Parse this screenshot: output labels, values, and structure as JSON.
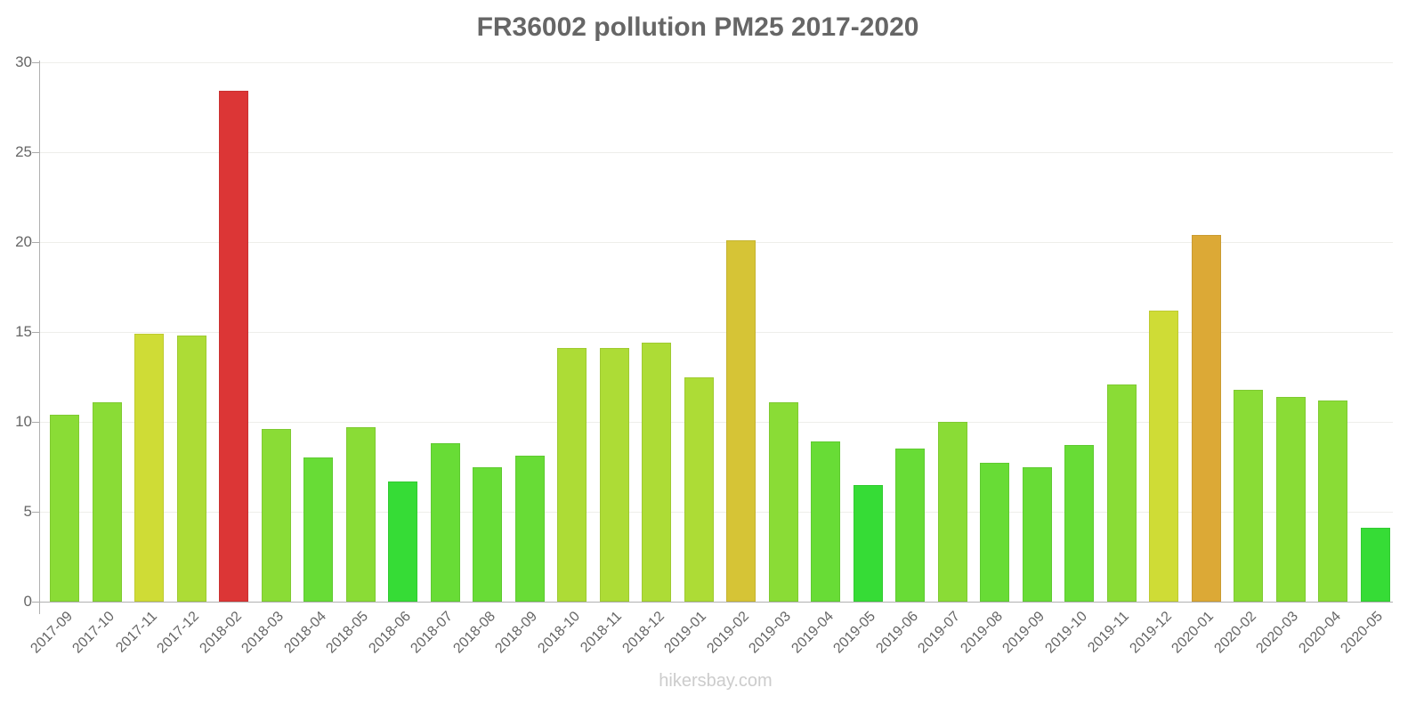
{
  "chart_data": {
    "type": "bar",
    "title": "FR36002 pollution PM25 2017-2020",
    "xlabel": "",
    "ylabel": "",
    "ylim": [
      0,
      30
    ],
    "yticks": [
      0,
      5,
      10,
      15,
      20,
      25,
      30
    ],
    "grid": true,
    "legend": null,
    "categories": [
      "2017-09",
      "2017-10",
      "2017-11",
      "2017-12",
      "2018-02",
      "2018-03",
      "2018-04",
      "2018-05",
      "2018-06",
      "2018-07",
      "2018-08",
      "2018-09",
      "2018-10",
      "2018-11",
      "2018-12",
      "2019-01",
      "2019-02",
      "2019-03",
      "2019-04",
      "2019-05",
      "2019-06",
      "2019-07",
      "2019-08",
      "2019-09",
      "2019-10",
      "2019-11",
      "2019-12",
      "2020-01",
      "2020-02",
      "2020-03",
      "2020-04",
      "2020-05"
    ],
    "values": [
      10.4,
      11.1,
      14.9,
      14.8,
      28.4,
      9.6,
      8.0,
      9.7,
      6.7,
      8.8,
      7.5,
      8.1,
      14.1,
      14.1,
      14.4,
      12.5,
      20.1,
      11.1,
      8.9,
      6.5,
      8.5,
      10.0,
      7.7,
      7.5,
      8.7,
      12.1,
      16.2,
      20.4,
      11.8,
      11.4,
      11.2,
      4.1
    ],
    "colors": [
      "#8adc36",
      "#8adc36",
      "#cfdc36",
      "#addc36",
      "#dc3636",
      "#8adc36",
      "#68dc36",
      "#8adc36",
      "#36dc36",
      "#68dc36",
      "#68dc36",
      "#68dc36",
      "#addc36",
      "#addc36",
      "#addc36",
      "#addc36",
      "#d6c436",
      "#8adc36",
      "#68dc36",
      "#36dc36",
      "#68dc36",
      "#8adc36",
      "#68dc36",
      "#68dc36",
      "#68dc36",
      "#8adc36",
      "#cfdc36",
      "#dca936",
      "#8adc36",
      "#8adc36",
      "#8adc36",
      "#36dc36"
    ]
  },
  "header": {
    "title": "FR36002 pollution PM25 2017-2020"
  },
  "footer": {
    "source": "hikersbay.com"
  }
}
